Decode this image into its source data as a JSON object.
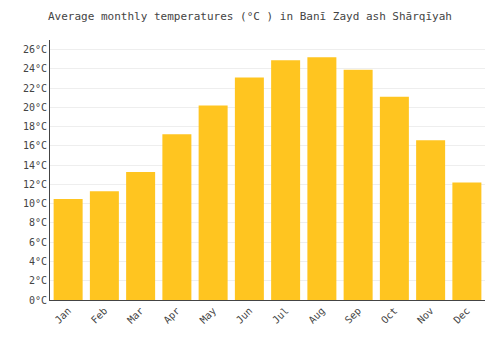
{
  "chart_data": {
    "type": "bar",
    "title": "Average monthly temperatures (°C ) in Banī Zayd ash Shārqīyah",
    "categories": [
      "Jan",
      "Feb",
      "Mar",
      "Apr",
      "May",
      "Jun",
      "Jul",
      "Aug",
      "Sep",
      "Oct",
      "Nov",
      "Dec"
    ],
    "values": [
      10.5,
      11.3,
      13.3,
      17.2,
      20.2,
      23.1,
      24.9,
      25.2,
      23.9,
      21.1,
      16.6,
      12.2
    ],
    "color": "#FFC520",
    "ylim": [
      0,
      27
    ],
    "yticks": [
      {
        "value": 0,
        "label": "0°C"
      },
      {
        "value": 2,
        "label": "2°C"
      },
      {
        "value": 4,
        "label": "4°C"
      },
      {
        "value": 6,
        "label": "6°C"
      },
      {
        "value": 8,
        "label": "8°C"
      },
      {
        "value": 10,
        "label": "10°C"
      },
      {
        "value": 12,
        "label": "12°C"
      },
      {
        "value": 14,
        "label": "14°C"
      },
      {
        "value": 16,
        "label": "16°C"
      },
      {
        "value": 18,
        "label": "18°C"
      },
      {
        "value": 20,
        "label": "20°C"
      },
      {
        "value": 22,
        "label": "22°C"
      },
      {
        "value": 24,
        "label": "24°C"
      },
      {
        "value": 26,
        "label": "26°C"
      }
    ],
    "grid": true
  }
}
